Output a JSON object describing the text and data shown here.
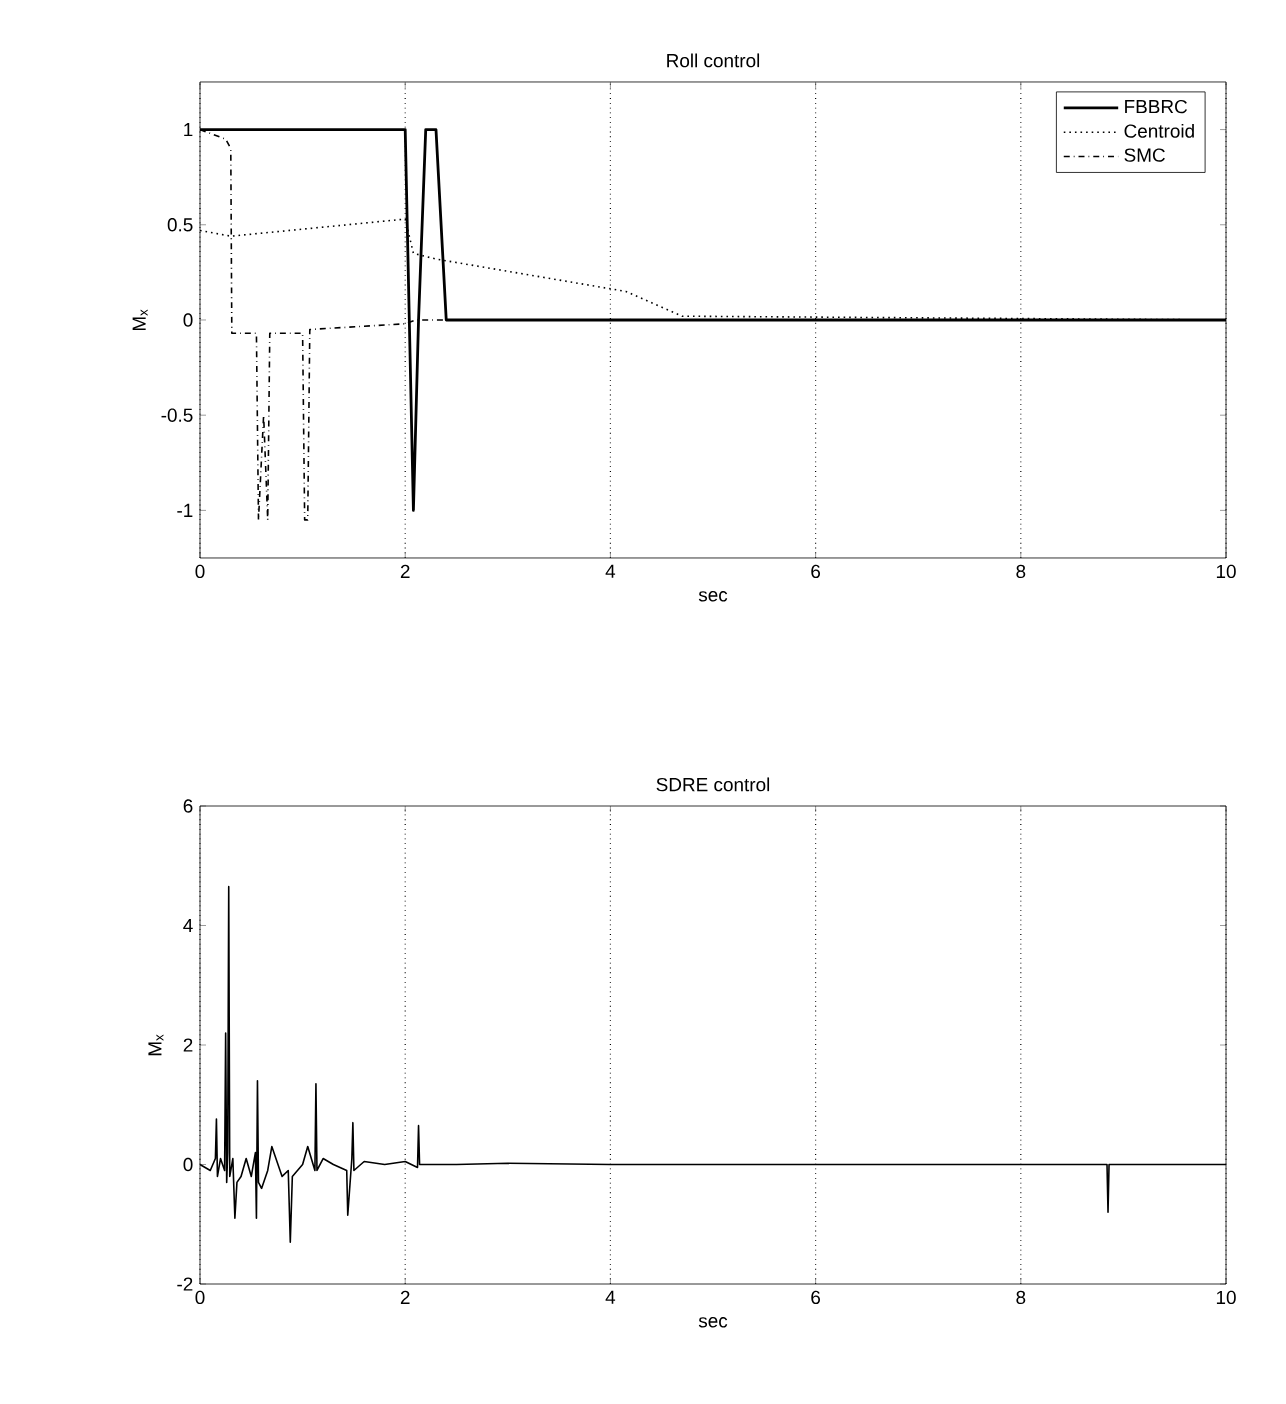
{
  "chart_data": [
    {
      "type": "line",
      "title": "Roll control",
      "xlabel": "sec",
      "ylabel": "M$_{x}$",
      "xlim": [
        0,
        10
      ],
      "ylim": [
        -1.25,
        1.25
      ],
      "xticks": [
        0,
        2,
        4,
        6,
        8,
        10
      ],
      "yticks": [
        -1,
        -0.5,
        0,
        0.5,
        1
      ],
      "grid": "x",
      "legend": "top right",
      "series": [
        {
          "name": "FBBRC",
          "color": "#000000",
          "line_style": "solid",
          "x": [
            0,
            2.0,
            2.04,
            2.08,
            2.13,
            2.2,
            2.3,
            2.4,
            10
          ],
          "values": [
            1,
            1,
            0,
            -1,
            0,
            1,
            1,
            0,
            0
          ]
        },
        {
          "name": "Centroid",
          "color": "#000000",
          "line_style": "dotted",
          "x": [
            0,
            0.3,
            2.0,
            2.08,
            2.3,
            4.15,
            4.7,
            10
          ],
          "values": [
            0.47,
            0.44,
            0.53,
            0.35,
            0.32,
            0.15,
            0.02,
            0
          ]
        },
        {
          "name": "SMC",
          "color": "#000000",
          "line_style": "dashdotted",
          "x": [
            0,
            0.25,
            0.3,
            0.31,
            0.55,
            0.57,
            0.62,
            0.66,
            0.68,
            1.0,
            1.02,
            1.05,
            1.07,
            2.0,
            2.1,
            10
          ],
          "values": [
            1,
            0.95,
            0.9,
            -0.07,
            -0.07,
            -1.05,
            -0.5,
            -1.05,
            -0.07,
            -0.07,
            -1.05,
            -1.05,
            -0.05,
            -0.02,
            0,
            0
          ]
        }
      ]
    },
    {
      "type": "line",
      "title": "SDRE control",
      "xlabel": "sec",
      "ylabel": "M$_{x}$",
      "xlim": [
        0,
        10
      ],
      "ylim": [
        -2,
        6
      ],
      "xticks": [
        0,
        2,
        4,
        6,
        8,
        10
      ],
      "yticks": [
        -2,
        0,
        2,
        4,
        6
      ],
      "grid": "x",
      "series": [
        {
          "color": "#000000",
          "line_style": "solid",
          "x": [
            0,
            0.1,
            0.15,
            0.16,
            0.17,
            0.2,
            0.24,
            0.25,
            0.26,
            0.27,
            0.28,
            0.29,
            0.32,
            0.34,
            0.36,
            0.4,
            0.45,
            0.5,
            0.54,
            0.55,
            0.56,
            0.57,
            0.6,
            0.66,
            0.7,
            0.8,
            0.86,
            0.88,
            0.9,
            1.0,
            1.05,
            1.12,
            1.13,
            1.14,
            1.2,
            1.3,
            1.43,
            1.44,
            1.48,
            1.49,
            1.5,
            1.6,
            1.8,
            2.0,
            2.12,
            2.13,
            2.14,
            2.5,
            3,
            4,
            6,
            8,
            8.84,
            8.85,
            8.86,
            9.5,
            10
          ],
          "values": [
            0,
            -0.1,
            0.1,
            0.76,
            -0.2,
            0.1,
            -0.1,
            2.2,
            -0.3,
            0.2,
            4.65,
            -0.2,
            0.1,
            -0.9,
            -0.3,
            -0.2,
            0.1,
            -0.2,
            0.2,
            -0.9,
            1.4,
            -0.3,
            -0.4,
            -0.1,
            0.3,
            -0.2,
            -0.1,
            -1.3,
            -0.2,
            0,
            0.3,
            -0.1,
            1.35,
            -0.1,
            0.1,
            0,
            -0.1,
            -0.85,
            0.1,
            0.7,
            -0.1,
            0.05,
            0,
            0.05,
            -0.05,
            0.65,
            0,
            0,
            0.02,
            0,
            0,
            0,
            0,
            -0.8,
            0,
            0,
            0
          ]
        }
      ]
    }
  ]
}
